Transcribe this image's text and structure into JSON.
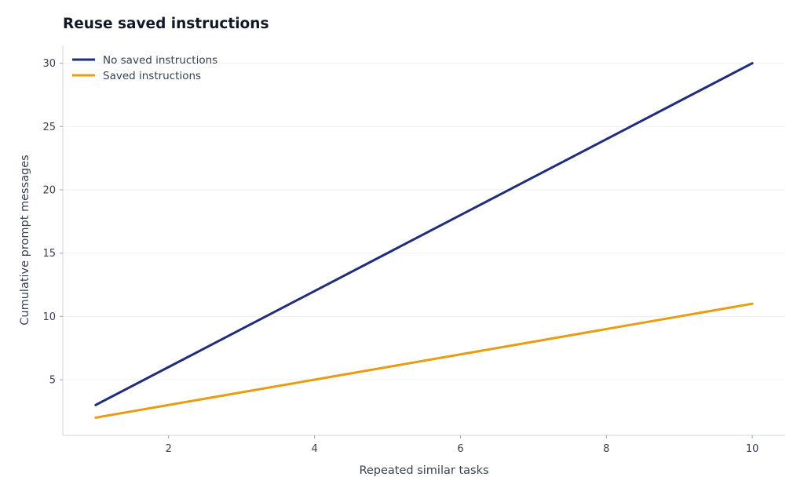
{
  "chart_data": {
    "type": "line",
    "title": "Reuse saved instructions",
    "xlabel": "Repeated similar tasks",
    "ylabel": "Cumulative prompt messages",
    "x": [
      1,
      2,
      3,
      4,
      5,
      6,
      7,
      8,
      9,
      10
    ],
    "series": [
      {
        "name": "No saved instructions",
        "color": "#1f2d7a",
        "values": [
          3,
          6,
          9,
          12,
          15,
          18,
          21,
          24,
          27,
          30
        ]
      },
      {
        "name": "Saved instructions",
        "color": "#e89c12",
        "values": [
          2,
          3,
          4,
          5,
          6,
          7,
          8,
          9,
          10,
          11
        ]
      }
    ],
    "xlim": [
      0.55,
      10.45
    ],
    "ylim": [
      0.6,
      31.4
    ],
    "xticks": [
      2,
      4,
      6,
      8,
      10
    ],
    "yticks": [
      5,
      10,
      15,
      20,
      25,
      30
    ],
    "grid": "horizontal",
    "legend_position": "top-left"
  }
}
